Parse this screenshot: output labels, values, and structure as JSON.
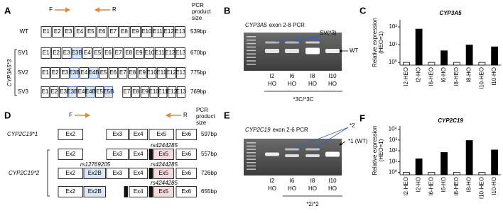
{
  "panels": {
    "a": {
      "label": "A",
      "primer_f": "F",
      "primer_r": "R",
      "size_header": [
        "PCR",
        "product",
        "size"
      ],
      "group_label": "CYP3A5*3",
      "rows": [
        {
          "name": "WT",
          "exons": [
            "E1",
            "E2",
            "E3",
            "E4",
            "E5",
            "E6",
            "E7",
            "E8",
            "E9",
            "E10",
            "E11",
            "E12",
            "E13"
          ],
          "size": "539bp"
        },
        {
          "name": "SV1",
          "exons": [
            "E1",
            "E2",
            "E3",
            "E3B",
            "E4",
            "E5",
            "E6",
            "E7",
            "E8",
            "E9",
            "E10",
            "E11",
            "E12",
            "E13"
          ],
          "size": "670bp"
        },
        {
          "name": "SV2",
          "exons": [
            "E1",
            "E2",
            "E3",
            "E3B",
            "E4",
            "E4B",
            "E5",
            "E6",
            "E7",
            "E8",
            "E9",
            "E10",
            "E11",
            "E12",
            "E13"
          ],
          "size": "775bp"
        },
        {
          "name": "SV3",
          "exons": [
            "E1",
            "E2",
            "E3",
            "E3B",
            "E4",
            "E4B",
            "E5",
            "E5B",
            null,
            "E7",
            "E8",
            "E9",
            "E10",
            "E11",
            "E12",
            "E13"
          ],
          "size": "769bp"
        }
      ]
    },
    "b": {
      "label": "B",
      "gene": "CYP3A5",
      "title": "exon 2-8 PCR",
      "band_upper": "SV(*3)",
      "band_lower": "WT",
      "lanes": [
        [
          "I2",
          "HO"
        ],
        [
          "I6",
          "HO"
        ],
        [
          "I8",
          "HO"
        ],
        [
          "I10",
          "HO"
        ]
      ],
      "genotype": "*3C/*3C"
    },
    "d": {
      "label": "D",
      "primer_f": "F",
      "primer_r": "R",
      "size_header": [
        "PCR",
        "product",
        "size"
      ],
      "group_label": "CYP2C19*2",
      "rows": [
        {
          "name": "CYP2C19*1",
          "exons": [
            "Ex2",
            "Ex3",
            "Ex4",
            "Ex5",
            "Ex6"
          ],
          "size": "597bp"
        },
        {
          "exons": [
            "Ex2",
            "Ex3",
            "Ex4",
            null,
            "Ex5",
            "Ex6"
          ],
          "size": "557bp",
          "snp_ex5": "rs4244285"
        },
        {
          "exons": [
            "Ex2",
            "Ex2B",
            "Ex3",
            "Ex4",
            null,
            "Ex5",
            "Ex6"
          ],
          "size": "726bp",
          "snp_ex2b": "rs12769205",
          "snp_ex5": "rs4244285"
        },
        {
          "exons": [
            "Ex2",
            "Ex2B",
            null,
            "Ex4",
            null,
            "Ex5",
            "Ex6"
          ],
          "size": "655bp",
          "snp_ex5": "rs4244285"
        }
      ]
    },
    "e": {
      "label": "E",
      "gene": "CYP2C19",
      "title": "exon 2-6 PCR",
      "band_upper": "*2",
      "band_lower": "*1 (WT)",
      "lanes": [
        [
          "I2",
          "HO"
        ],
        [
          "I6",
          "HO"
        ],
        [
          "I8",
          "HO"
        ],
        [
          "I10",
          "HO"
        ]
      ],
      "genotype": "*2/*2"
    }
  },
  "chart_data": [
    {
      "type": "bar",
      "panel": "C",
      "title": "CYP3A5",
      "ylabel": [
        "Relative expression",
        "(HEO=1)"
      ],
      "log_scale": true,
      "categories": [
        "I2-HEO",
        "I2-HO",
        "I6-HEO",
        "I6-HO",
        "I8-HEO",
        "I8-HO",
        "I10-HEO",
        "I10-HO"
      ],
      "values": [
        1,
        75,
        1,
        4.5,
        1,
        9.5,
        1,
        7.5
      ],
      "colors": [
        "#ffffff",
        "#000000",
        "#ffffff",
        "#000000",
        "#ffffff",
        "#000000",
        "#ffffff",
        "#000000"
      ],
      "ylim": [
        0.7,
        250
      ],
      "yticks": [
        {
          "value": 1,
          "label": "10⁰"
        },
        {
          "value": 10,
          "label": "10¹"
        },
        {
          "value": 100,
          "label": "10²"
        }
      ]
    },
    {
      "type": "bar",
      "panel": "F",
      "title": "CYP2C19",
      "ylabel": [
        "Relative expression",
        "(HEO=1)"
      ],
      "log_scale": true,
      "categories": [
        "I2-HEO",
        "I2-HO",
        "I6-HEO",
        "I6-HO",
        "I8-HEO",
        "I8-HO",
        "I10-HEO",
        "I10-HO"
      ],
      "values": [
        1,
        18,
        1,
        70,
        1,
        900,
        1,
        120
      ],
      "colors": [
        "#ffffff",
        "#000000",
        "#ffffff",
        "#000000",
        "#ffffff",
        "#000000",
        "#ffffff",
        "#000000"
      ],
      "ylim": [
        0.6,
        20000
      ],
      "yticks": [
        {
          "value": 1,
          "label": "10⁰"
        },
        {
          "value": 10,
          "label": "10¹"
        },
        {
          "value": 100,
          "label": "10²"
        },
        {
          "value": 1000,
          "label": "10³"
        },
        {
          "value": 10000,
          "label": "10⁴"
        }
      ]
    }
  ]
}
